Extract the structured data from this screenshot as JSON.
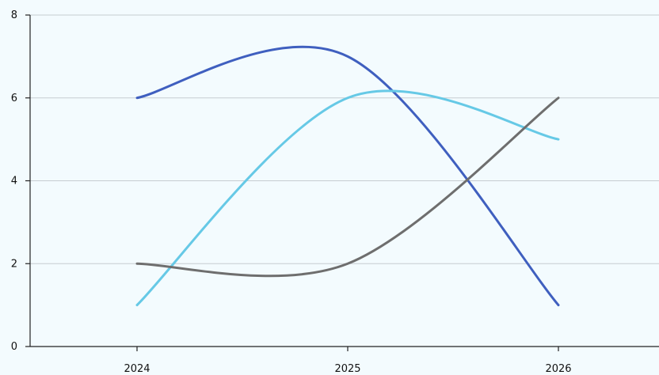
{
  "chart_data": {
    "type": "line",
    "title": "",
    "xlabel": "",
    "ylabel": "",
    "x": [
      "2024",
      "2025",
      "2026"
    ],
    "ylim": [
      0,
      8
    ],
    "y_ticks": [
      "0",
      "2",
      "4",
      "6",
      "8"
    ],
    "grid": "horizontal",
    "legend": "none",
    "series": [
      {
        "values": [
          6,
          7,
          1
        ],
        "color": "#3f5fbf"
      },
      {
        "values": [
          1,
          6,
          5
        ],
        "color": "#66c9e6"
      },
      {
        "values": [
          2,
          2,
          6
        ],
        "color": "#6e6e6e"
      }
    ]
  }
}
